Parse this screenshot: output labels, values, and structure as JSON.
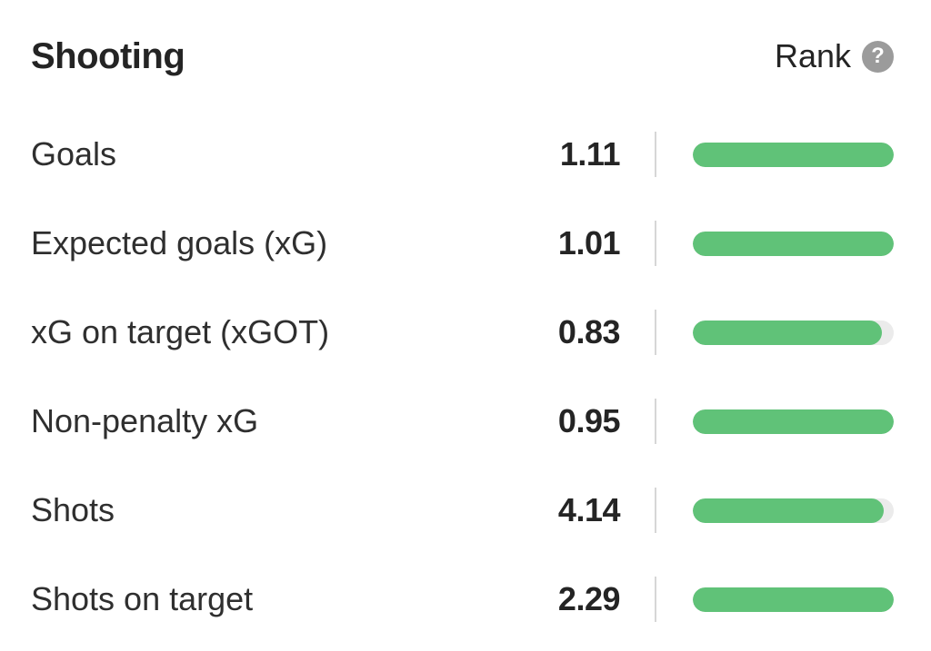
{
  "section": {
    "title": "Shooting",
    "rank_label": "Rank",
    "help_glyph": "?"
  },
  "colors": {
    "bar_fill": "#60c278",
    "bar_track": "#ebebeb",
    "help_circle_bg": "#9b9b9b",
    "divider": "#d6d6d6"
  },
  "stats": [
    {
      "label": "Goals",
      "value": "1.11",
      "rank_percent": 100
    },
    {
      "label": "Expected goals (xG)",
      "value": "1.01",
      "rank_percent": 100
    },
    {
      "label": "xG on target (xGOT)",
      "value": "0.83",
      "rank_percent": 94
    },
    {
      "label": "Non-penalty xG",
      "value": "0.95",
      "rank_percent": 100
    },
    {
      "label": "Shots",
      "value": "4.14",
      "rank_percent": 95
    },
    {
      "label": "Shots on target",
      "value": "2.29",
      "rank_percent": 100
    }
  ]
}
